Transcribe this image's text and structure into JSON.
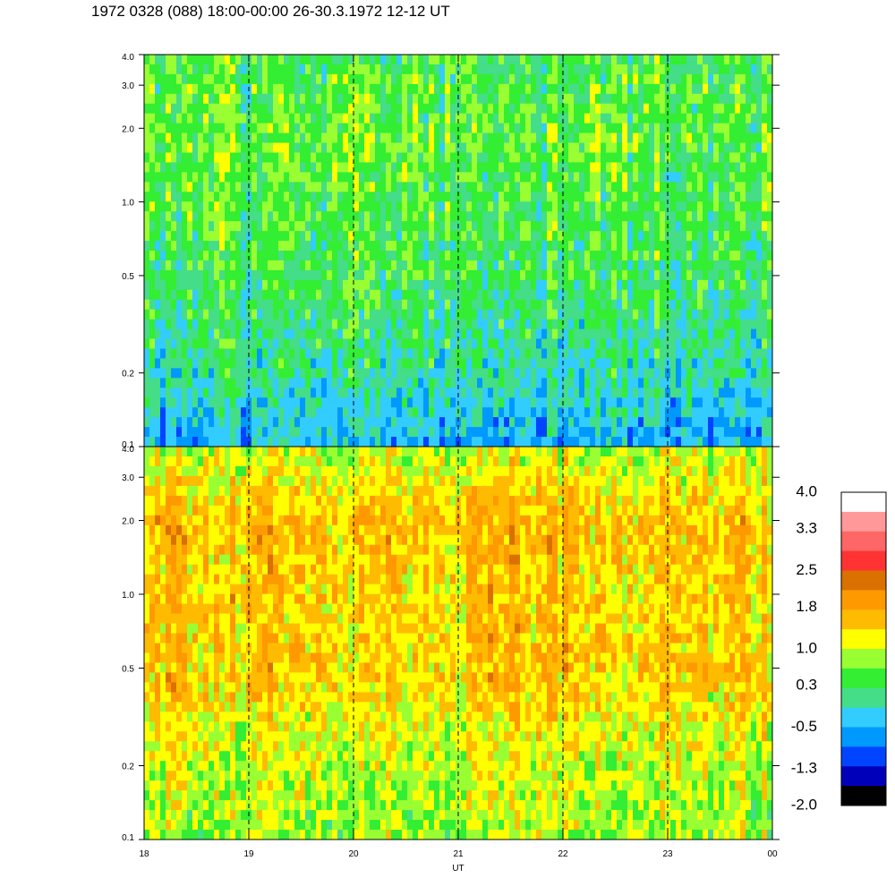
{
  "title": "1972 0328 (088) 18:00-00:00 26-30.3.1972  12-12 UT",
  "chart_data": {
    "type": "heatmap",
    "title": "1972 0328 (088) 18:00-00:00 26-30.3.1972  12-12 UT",
    "xlabel": "UT",
    "x_ticks": [
      "18",
      "19",
      "20",
      "21",
      "22",
      "23",
      "00"
    ],
    "x_range": [
      18,
      24
    ],
    "dashed_lines_at": [
      19,
      20,
      21,
      22,
      23
    ],
    "grid": false,
    "panels": [
      {
        "name": "",
        "y_ticks": [
          "0.1",
          "0.2",
          "0.5",
          "1.0",
          "2.0",
          "3.0",
          "4.0"
        ],
        "y_values": [
          0.1,
          0.2,
          0.5,
          1.0,
          2.0,
          3.0,
          4.0
        ],
        "y_scale": "log",
        "ylim": [
          0.1,
          4.0
        ],
        "profile": [
          {
            "y": 0.1,
            "level": -0.5
          },
          {
            "y": 0.2,
            "level": 0.0
          },
          {
            "y": 0.5,
            "level": 0.3
          },
          {
            "y": 1.0,
            "level": 0.45
          },
          {
            "y": 2.0,
            "level": 0.55
          },
          {
            "y": 4.0,
            "level": 0.4
          }
        ]
      },
      {
        "name": "",
        "y_ticks": [
          "0.1",
          "0.2",
          "0.5",
          "1.0",
          "2.0",
          "3.0",
          "4.0"
        ],
        "y_values": [
          0.1,
          0.2,
          0.5,
          1.0,
          2.0,
          3.0,
          4.0
        ],
        "y_scale": "log",
        "ylim": [
          0.1,
          4.0
        ],
        "profile": [
          {
            "y": 0.1,
            "level": 0.8
          },
          {
            "y": 0.2,
            "level": 1.0
          },
          {
            "y": 0.5,
            "level": 1.5
          },
          {
            "y": 1.0,
            "level": 1.45
          },
          {
            "y": 2.0,
            "level": 1.6
          },
          {
            "y": 4.0,
            "level": 0.95
          }
        ]
      }
    ],
    "colorbar": {
      "labels": [
        "4.0",
        "3.3",
        "2.5",
        "1.8",
        "1.0",
        "0.3",
        "-0.5",
        "-1.3",
        "-2.0"
      ],
      "label_values": [
        4.0,
        3.3,
        2.5,
        1.8,
        1.0,
        0.3,
        -0.5,
        -1.3,
        -2.0
      ],
      "colors_top_to_bottom": [
        "#ffffff",
        "#ff9999",
        "#ff6666",
        "#ff3333",
        "#d97000",
        "#ff9900",
        "#ffbb00",
        "#ffff00",
        "#99ff33",
        "#33ee33",
        "#44dd88",
        "#33ccff",
        "#0099ff",
        "#0044ff",
        "#0000bb",
        "#000000"
      ],
      "range": [
        -2.0,
        4.0
      ]
    }
  }
}
